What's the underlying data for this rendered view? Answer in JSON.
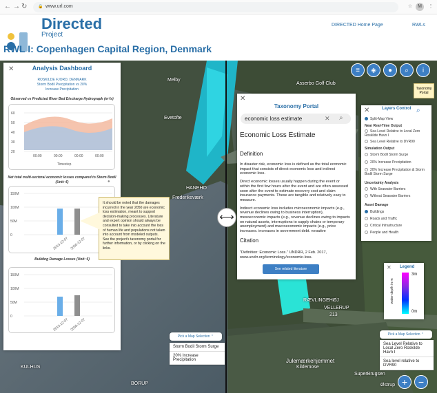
{
  "browser": {
    "url": "www.url.com",
    "avatar": "M"
  },
  "site": {
    "brand": "Directed",
    "brand_sub": "Project",
    "links": [
      "DIRECTED Home Page",
      "RWLs"
    ],
    "page_title": "RWL I: Copenhagen Capital Region, Denmark"
  },
  "analysis": {
    "title": "Analysis Dashboard",
    "subtitle": "ROSKILDE FJORD, DENMARK",
    "subtitle2": "Storm Bodil Precipitation vs 20%",
    "subtitle3": "Increase Precipitation",
    "chart1_title": "Observed vs Predicted River Bed Discharge Hydrograph (m³/s)",
    "chart1_xlabel": "Timestep",
    "chart1_y": [
      "60",
      "50",
      "40",
      "30",
      "20"
    ],
    "chart1_x": [
      "00:00",
      "00:00",
      "00:00",
      "00:00"
    ],
    "chart2_title": "Net total multi-sectoral economic losses compared to Storm Bodil (Unit: €)",
    "chart2_y": [
      "150M",
      "100M",
      "50M",
      "0"
    ],
    "chart2_x": [
      "2013-12-07",
      "2050-12-07"
    ],
    "chart3_title": "Building Damage Losses (Unit: €)",
    "chart3_y": [
      "150M",
      "100M",
      "50M",
      "0"
    ],
    "chart3_x": [
      "2013-12-07",
      "2050-12-07"
    ],
    "tooltip": "It should be noted that the damages incurred in the year 2050 are economic loss estimation, meant to support decision-making processes. Literature and expert opinion should always be consulted to take into account the loss of human life and populations not taken into account from modeled outputs. See the project's taxonomy portal for further information, or by clicking on the links."
  },
  "taxonomy": {
    "title": "Taxonomy Portal",
    "search_value": "economic loss estimate",
    "heading": "Economic Loss Estimate",
    "definition_label": "Definition",
    "p1": "In disaster risk, economic loss is defined as the total economic impact that consists of direct economic loss and indirect economic loss.",
    "p2": "Direct economic losses usually happen during the event or within the first few hours after the event and are often assessed soon after the event to estimate recovery cost and claim insurance payments. These are tangible and relatively easy to measure.",
    "p3": "Indirect economic loss includes microeconomic impacts (e.g., revenue declines owing to business interruption), mesoeconomic impacts (e.g., revenue declines owing to impacts on natural assets, interruptions to supply chains or temporary unemployment) and macroeconomic impacts (e.g., price increases, increases in government debt, negative",
    "citation_label": "Citation",
    "citation": "\"Definition: Economic Loss.\" UNDRR, 2 Feb. 2017, www.undrr.org/terminology/economic-loss.",
    "related_button": "See related literature"
  },
  "layers": {
    "title": "Layers Control",
    "split": "Split-Map View",
    "near_rt": "Near Real-Time Output",
    "nrt1": "Sea Level Relative to Local Zero Roskilde Havn I",
    "nrt2": "Sea Level Relative to DVR90",
    "sim": "Simulation Output",
    "sim1": "Storm Bodil Storm Surge",
    "sim2": "20% Increase Precipitation",
    "sim3": "20% Increase Precipitation & Storm Bodil Storm Surge",
    "unc": "Uncertainty Analysis",
    "unc1": "With Seawater Barriers",
    "unc2": "Without Seawater Barriers",
    "asset": "Asset Damage",
    "a1": "Buildings",
    "a2": "Roads and Traffic",
    "a3": "Critical Infrastructure",
    "a4": "People and Health"
  },
  "legend": {
    "title": "Legend",
    "top": "3m",
    "bottom": "0m",
    "axis": "water depth in m"
  },
  "tooltip_top": "Taxonomy Portal",
  "left_select": {
    "header": "Pick a Map Selection",
    "items": [
      "Storm Bodil Storm Surge",
      "20% Increase Precipitation"
    ]
  },
  "right_select": {
    "header": "Pick a Map Selection",
    "items": [
      "Sea Level Relative to Local Zero Roskilde Havn I",
      "Sea level relative to DVR90"
    ]
  },
  "map_labels": {
    "melby": "Melby",
    "evetofte": "Evetofte",
    "hanehoved": "HANEHO",
    "frederiksvaerk": "Frederiksværk",
    "golf": "Asserbo Golf Club",
    "vellerup": "VELLERUP",
    "jule": "Julemærkehjemmet",
    "kilde": "Kildemose",
    "super": "SuperBrugsen",
    "ostrup": "Østrup",
    "kulhus": "KULHUS",
    "borup": "BORUP",
    "road": "213",
    "roskildevej": "RÆVLINGEHØJ"
  },
  "colors": {
    "accent": "#2a6fa7",
    "button": "#3d7fc4"
  }
}
